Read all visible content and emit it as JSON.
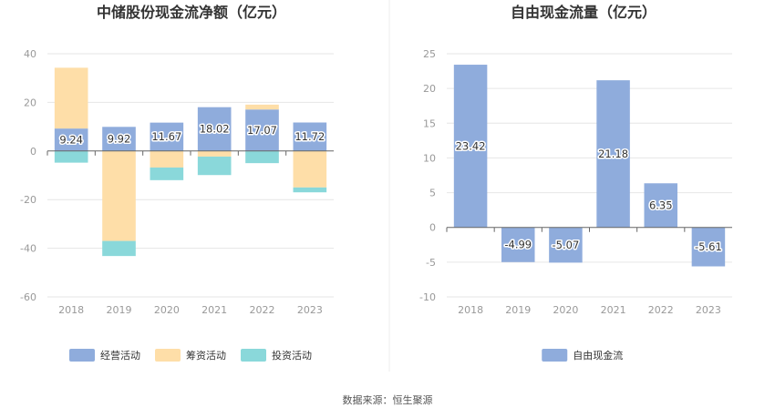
{
  "source_text": "数据来源：恒生聚源",
  "colors": {
    "operating": "#8facdc",
    "financing": "#fedea8",
    "investing": "#8ad8da",
    "free_cash_flow": "#8facdc",
    "axis": "#666666",
    "grid": "#e6e6e6"
  },
  "chart_data": [
    {
      "type": "bar",
      "stacked": true,
      "title": "中储股份现金流净额（亿元）",
      "categories": [
        "2018",
        "2019",
        "2020",
        "2021",
        "2022",
        "2023"
      ],
      "ylim": [
        -60,
        40
      ],
      "yticks": [
        40,
        20,
        0,
        -20,
        -40,
        -60
      ],
      "grid": true,
      "legend_position": "bottom",
      "series": [
        {
          "name": "经营活动",
          "color_key": "operating",
          "values": [
            9.24,
            9.92,
            11.67,
            18.02,
            17.07,
            11.72
          ],
          "labels": [
            "9.24",
            "9.92",
            "11.67",
            "18.02",
            "17.07",
            "11.72"
          ]
        },
        {
          "name": "筹资活动",
          "color_key": "financing",
          "values": [
            25.0,
            -37.0,
            -6.8,
            -2.3,
            2.0,
            -15.0
          ]
        },
        {
          "name": "投资活动",
          "color_key": "investing",
          "values": [
            -4.8,
            -6.2,
            -5.2,
            -7.6,
            -5.0,
            -2.0
          ]
        }
      ]
    },
    {
      "type": "bar",
      "title": "自由现金流量（亿元）",
      "categories": [
        "2018",
        "2019",
        "2020",
        "2021",
        "2022",
        "2023"
      ],
      "ylim": [
        -10,
        25
      ],
      "yticks": [
        25,
        20,
        15,
        10,
        5,
        0,
        -5,
        -10
      ],
      "grid": true,
      "legend_position": "bottom",
      "series": [
        {
          "name": "自由现金流",
          "color_key": "free_cash_flow",
          "values": [
            23.42,
            -4.99,
            -5.07,
            21.18,
            6.35,
            -5.61
          ],
          "labels": [
            "23.42",
            "-4.99",
            "-5.07",
            "21.18",
            "6.35",
            "-5.61"
          ]
        }
      ]
    }
  ]
}
